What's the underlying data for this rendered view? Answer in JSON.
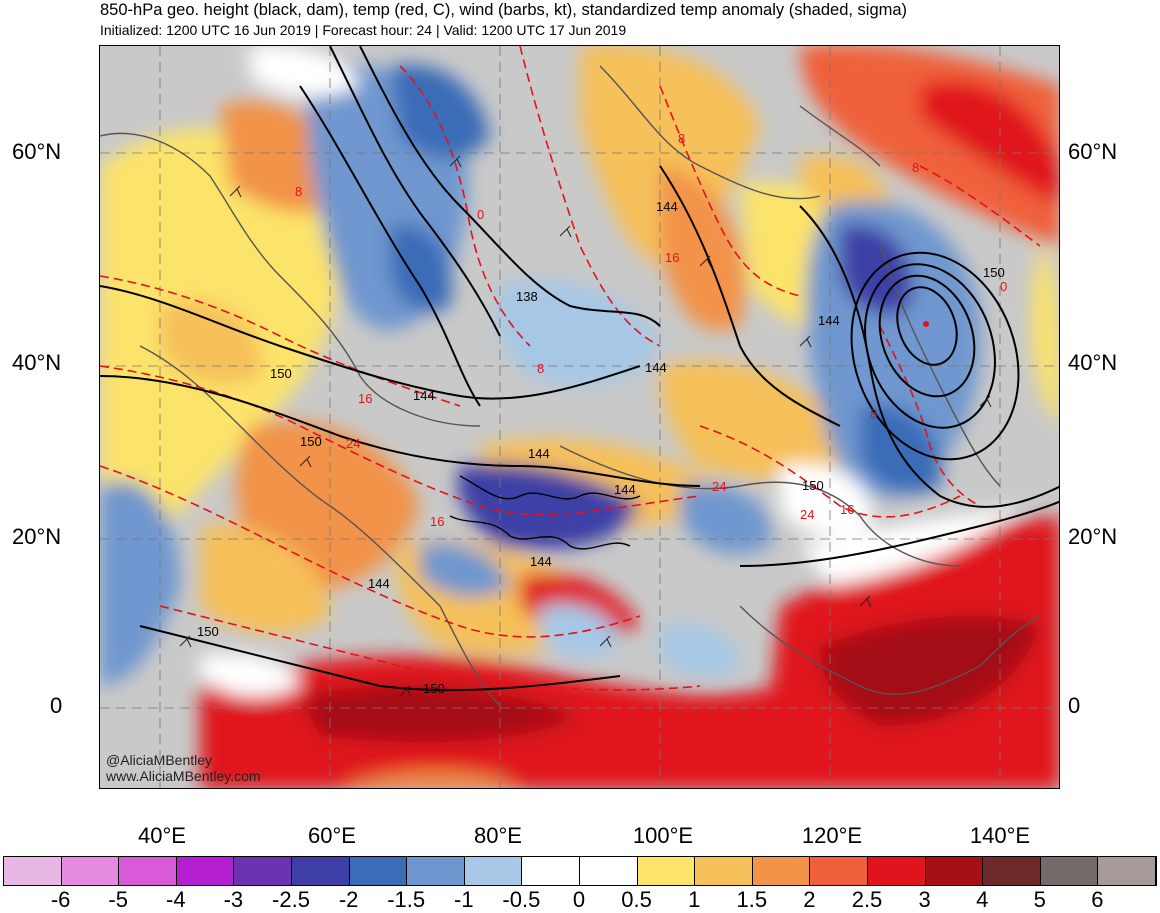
{
  "header": {
    "title": "850-hPa geo. height (black, dam), temp (red, C), wind (barbs, kt), standardized temp anomaly (shaded, sigma)",
    "subtitle": "Initialized: 1200 UTC 16 Jun 2019 | Forecast hour: 24 | Valid: 1200 UTC 17 Jun 2019"
  },
  "map": {
    "lat_labels": [
      "60°N",
      "40°N",
      "20°N",
      "0"
    ],
    "lon_labels": [
      "40°E",
      "60°E",
      "80°E",
      "100°E",
      "120°E",
      "140°E"
    ],
    "height_contour_labels": [
      "144",
      "138",
      "144",
      "144",
      "144",
      "150",
      "144",
      "150",
      "144",
      "150",
      "150",
      "144",
      "144",
      "150",
      "150"
    ],
    "temp_contour_labels": [
      "0",
      "8",
      "8",
      "8",
      "16",
      "8",
      "16",
      "24",
      "24",
      "24",
      "16",
      "8",
      "0",
      "16"
    ],
    "credit_handle": "@AliciaMBentley",
    "credit_site": "www.AliciaMBentley.com"
  },
  "colorbar": {
    "labels": [
      "-6",
      "-5",
      "-4",
      "-3",
      "-2.5",
      "-2",
      "-1.5",
      "-1",
      "-0.5",
      "0",
      "0.5",
      "1",
      "1.5",
      "2",
      "2.5",
      "3",
      "4",
      "5",
      "6"
    ],
    "colors": [
      "#e8b8e4",
      "#e58ae0",
      "#d95ad8",
      "#b41fd1",
      "#6b32b2",
      "#3d3fa6",
      "#3a6cb8",
      "#6f97cf",
      "#a6c7e6",
      "#ffffff",
      "#ffffff",
      "#fce36a",
      "#f6c05a",
      "#f2934a",
      "#f0603a",
      "#e0141c",
      "#a50f15",
      "#6e2a2a",
      "#746a68",
      "#a69b99"
    ]
  }
}
